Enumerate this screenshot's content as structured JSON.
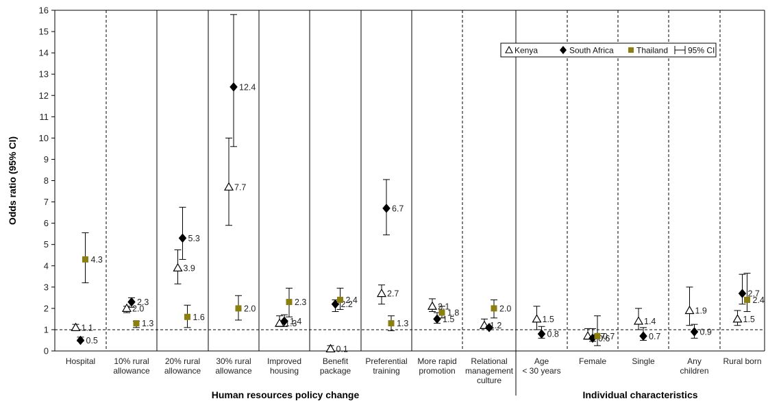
{
  "chart_data": {
    "type": "scatter",
    "ylabel": "Odds ratio (95% CI)",
    "ylim": [
      0,
      16
    ],
    "yticks": [
      0,
      1,
      2,
      3,
      4,
      5,
      6,
      7,
      8,
      9,
      10,
      11,
      12,
      13,
      14,
      15,
      16
    ],
    "reference_line": 1,
    "categories": [
      [
        "Hospital"
      ],
      [
        "10% rural",
        "allowance"
      ],
      [
        "20% rural",
        "allowance"
      ],
      [
        "30% rural",
        "allowance"
      ],
      [
        "Improved",
        "housing"
      ],
      [
        "Benefit",
        "package"
      ],
      [
        "Preferential",
        "training"
      ],
      [
        "More rapid",
        "promotion"
      ],
      [
        "Relational",
        "management",
        "culture"
      ],
      [
        "Age",
        "< 30 years"
      ],
      [
        "Female"
      ],
      [
        "Single"
      ],
      [
        "Any",
        "children"
      ],
      [
        "Rural born"
      ]
    ],
    "groups": [
      {
        "title": "Human resources policy change",
        "first": 0,
        "last": 8
      },
      {
        "title": "Individual characteristics",
        "first": 9,
        "last": 13
      }
    ],
    "legend": {
      "position": "top-right",
      "entries": [
        "Kenya",
        "South Africa",
        "Thailand",
        "95% CI"
      ]
    },
    "series": [
      {
        "name": "Kenya",
        "marker": "open-triangle",
        "color": "#000000",
        "values": [
          1.1,
          2.0,
          3.9,
          7.7,
          1.3,
          0.1,
          2.7,
          2.1,
          1.2,
          1.5,
          0.7,
          1.4,
          1.9,
          1.5
        ],
        "ci_low": [
          0.95,
          1.8,
          3.15,
          5.9,
          1.15,
          0.05,
          2.2,
          1.85,
          1.05,
          1.0,
          0.55,
          1.0,
          1.2,
          1.2
        ],
        "ci_high": [
          1.25,
          2.1,
          4.75,
          10.0,
          1.65,
          0.25,
          3.1,
          2.45,
          1.5,
          2.1,
          1.05,
          2.0,
          3.0,
          1.9
        ]
      },
      {
        "name": "South Africa",
        "marker": "filled-diamond",
        "color": "#000000",
        "values": [
          0.5,
          2.3,
          5.3,
          12.4,
          1.4,
          2.2,
          6.7,
          1.5,
          1.1,
          0.8,
          0.6,
          0.7,
          0.9,
          2.7
        ],
        "ci_low": [
          0.45,
          2.05,
          4.3,
          9.6,
          1.15,
          1.85,
          5.45,
          1.3,
          1.05,
          0.6,
          0.45,
          0.5,
          0.6,
          2.2
        ],
        "ci_high": [
          0.65,
          2.5,
          6.75,
          15.8,
          1.7,
          2.4,
          8.05,
          1.8,
          1.15,
          1.15,
          1.05,
          1.1,
          1.25,
          3.6
        ]
      },
      {
        "name": "Thailand",
        "marker": "filled-square",
        "color": "#8a7f10",
        "values": [
          4.3,
          1.3,
          1.6,
          2.0,
          2.3,
          2.4,
          1.3,
          1.8,
          2.0,
          null,
          0.7,
          null,
          null,
          2.4
        ],
        "ci_low": [
          3.2,
          1.1,
          1.1,
          1.45,
          1.6,
          1.95,
          0.95,
          1.55,
          1.55,
          null,
          0.25,
          null,
          null,
          1.85
        ],
        "ci_high": [
          5.55,
          1.4,
          2.15,
          2.6,
          2.95,
          2.95,
          1.65,
          2.1,
          2.4,
          null,
          1.65,
          null,
          null,
          3.65
        ]
      }
    ],
    "data_labels": [
      [
        "1.1",
        "2.0",
        "3.9",
        "7.7",
        "1.3",
        "0.1",
        "2.7",
        "2.1",
        "1.2",
        "1.5",
        "0.7",
        "1.4",
        "1.9",
        "1.5"
      ],
      [
        "0.5",
        "2.3",
        "5.3",
        "12.4",
        "1.4",
        "2.2",
        "6.7",
        "1.5",
        "",
        "0.8",
        "0.6",
        "0.7",
        "0.9",
        "2.7"
      ],
      [
        "4.3",
        "1.3",
        "1.6",
        "2.0",
        "2.3",
        "2.4",
        "1.3",
        "1.8",
        "2.0",
        "",
        "0.7",
        "",
        "",
        "2.4"
      ]
    ]
  }
}
